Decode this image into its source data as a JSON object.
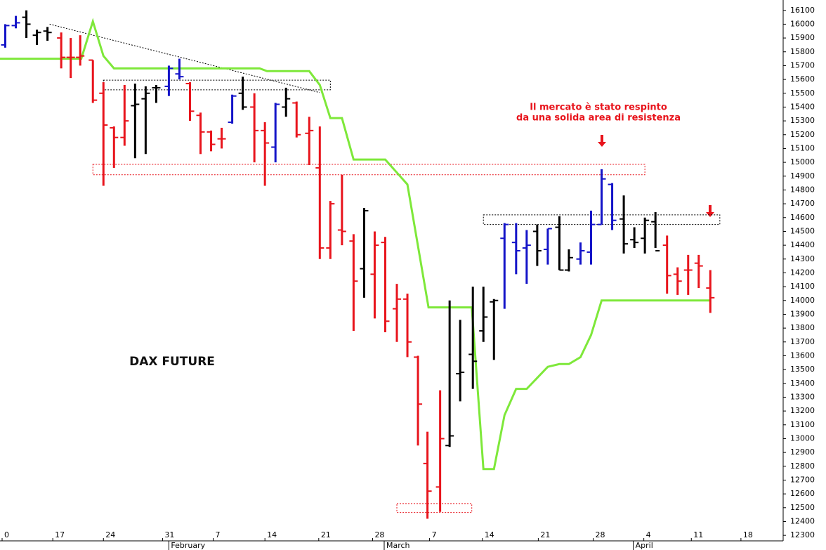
{
  "chart_data": {
    "type": "ohlc",
    "title": "DAX FUTURE",
    "annotations": [
      "Il mercato è stato respinto",
      "da una solida area di resistenza"
    ],
    "xlim": [
      -0.2,
      74.0
    ],
    "ylim": [
      12260,
      16175
    ],
    "xticks": [
      0,
      {
        "value": 4.8,
        "label": "17"
      },
      {
        "value": 9.6,
        "label": "24"
      },
      {
        "value": 15.2,
        "label": "31"
      },
      {
        "value": 20.0,
        "label": "7"
      },
      {
        "value": 24.9,
        "label": "14"
      },
      {
        "value": 30.0,
        "label": "21"
      },
      {
        "value": 35.1,
        "label": "28"
      },
      {
        "value": 40.5,
        "label": "7"
      },
      {
        "value": 45.5,
        "label": "14"
      },
      {
        "value": 50.8,
        "label": "21"
      },
      {
        "value": 56.0,
        "label": "28"
      },
      {
        "value": 60.8,
        "label": "4"
      },
      {
        "value": 65.3,
        "label": "11"
      },
      {
        "value": 70.0,
        "label": "18"
      }
    ],
    "month_labels": [
      {
        "value": 15.8,
        "label": "February"
      },
      {
        "value": 36.2,
        "label": "March"
      },
      {
        "value": 59.8,
        "label": "April"
      }
    ],
    "yticks": [
      12300,
      12400,
      12500,
      12600,
      12700,
      12800,
      12900,
      13000,
      13100,
      13200,
      13300,
      13400,
      13500,
      13600,
      13700,
      13800,
      13900,
      14000,
      14100,
      14200,
      14300,
      14400,
      14500,
      14600,
      14700,
      14800,
      14900,
      15000,
      15100,
      15200,
      15300,
      15400,
      15500,
      15600,
      15700,
      15800,
      15900,
      16000,
      16100
    ],
    "bars": {
      "x": [
        0.3,
        1.3,
        2.3,
        3.3,
        4.3,
        5.6,
        6.5,
        7.4,
        8.6,
        9.6,
        10.6,
        11.6,
        12.6,
        13.6,
        14.6,
        15.8,
        16.8,
        17.8,
        18.8,
        19.8,
        20.8,
        21.8,
        22.8,
        23.9,
        24.9,
        25.9,
        26.9,
        27.9,
        29.1,
        30.1,
        31.1,
        32.2,
        33.3,
        34.3,
        35.3,
        36.3,
        37.4,
        38.4,
        39.4,
        40.3,
        41.5,
        42.4,
        43.4,
        44.6,
        45.6,
        46.6,
        47.6,
        48.7,
        49.7,
        50.7,
        51.7,
        52.8,
        53.7,
        54.8,
        55.8,
        56.8,
        57.8,
        58.9,
        59.9,
        60.9,
        61.9,
        63.0,
        64.0,
        65.0,
        66.0,
        67.1
      ],
      "open": [
        15850,
        15990,
        16050,
        15920,
        15950,
        15900,
        15760,
        15760,
        15740,
        15500,
        15250,
        15180,
        15410,
        15460,
        15540,
        15550,
        15640,
        15570,
        15340,
        15220,
        15170,
        15290,
        15500,
        15400,
        15230,
        15110,
        15400,
        15430,
        15210,
        14960,
        14380,
        14510,
        14430,
        14230,
        14190,
        14420,
        13940,
        14010,
        13590,
        12820,
        12650,
        12950,
        13470,
        13610,
        13780,
        13990,
        14450,
        14420,
        14380,
        14500,
        14370,
        14530,
        14220,
        14300,
        14350,
        14550,
        14840,
        14590,
        14440,
        14450,
        14570,
        14400,
        14190,
        14220,
        14270,
        14090
      ],
      "high": [
        16000,
        16060,
        16100,
        15960,
        15980,
        15940,
        15900,
        15920,
        15740,
        15580,
        15260,
        15560,
        15570,
        15550,
        15560,
        15700,
        15750,
        15580,
        15360,
        15230,
        15250,
        15490,
        15620,
        15500,
        15290,
        15430,
        15540,
        15440,
        15330,
        15260,
        14720,
        14910,
        14480,
        14670,
        14500,
        14460,
        14120,
        14050,
        13600,
        13050,
        13350,
        14000,
        13860,
        14100,
        14100,
        14010,
        14560,
        14560,
        14510,
        14550,
        14520,
        14610,
        14370,
        14420,
        14650,
        14950,
        14850,
        14760,
        14530,
        14600,
        14640,
        14470,
        14240,
        14330,
        14330,
        14220
      ],
      "low": [
        15830,
        15970,
        15900,
        15850,
        15880,
        15680,
        15610,
        15700,
        15430,
        14830,
        14960,
        15120,
        15030,
        15060,
        15430,
        15480,
        15600,
        15300,
        15060,
        15080,
        15100,
        15280,
        15380,
        15000,
        14830,
        15000,
        15330,
        15180,
        14980,
        14300,
        14300,
        14400,
        13780,
        14020,
        13870,
        13770,
        13700,
        13590,
        12950,
        12420,
        12470,
        12940,
        13270,
        13360,
        13700,
        13570,
        13940,
        14190,
        14120,
        14250,
        14260,
        14220,
        14210,
        14260,
        14260,
        14550,
        14510,
        14340,
        14380,
        14340,
        14380,
        14050,
        14040,
        14040,
        14090,
        13910
      ],
      "close": [
        15990,
        16010,
        16000,
        15940,
        15940,
        15760,
        15760,
        15770,
        15450,
        15270,
        15180,
        15300,
        15420,
        15500,
        15540,
        15680,
        15620,
        15370,
        15220,
        15130,
        15170,
        15480,
        15400,
        15230,
        15140,
        15420,
        15460,
        15200,
        15230,
        14380,
        14700,
        14500,
        14140,
        14650,
        14400,
        13850,
        14010,
        13700,
        13250,
        12620,
        13000,
        13020,
        13480,
        13560,
        13880,
        14000,
        14550,
        14360,
        14400,
        14360,
        14520,
        14220,
        14310,
        14360,
        14550,
        14880,
        14580,
        14410,
        14420,
        14580,
        14360,
        14180,
        14140,
        14220,
        14250,
        14020
      ],
      "colors": [
        "#1414c8",
        "#1414c8",
        "#000000",
        "#000000",
        "#000000",
        "#e8141c",
        "#e8141c",
        "#e8141c",
        "#e8141c",
        "#e8141c",
        "#e8141c",
        "#e8141c",
        "#000000",
        "#000000",
        "#000000",
        "#1414c8",
        "#1414c8",
        "#e8141c",
        "#e8141c",
        "#e8141c",
        "#e8141c",
        "#1414c8",
        "#000000",
        "#e8141c",
        "#e8141c",
        "#1414c8",
        "#000000",
        "#e8141c",
        "#e8141c",
        "#e8141c",
        "#e8141c",
        "#e8141c",
        "#e8141c",
        "#000000",
        "#e8141c",
        "#e8141c",
        "#e8141c",
        "#e8141c",
        "#e8141c",
        "#e8141c",
        "#e8141c",
        "#000000",
        "#000000",
        "#000000",
        "#000000",
        "#000000",
        "#1414c8",
        "#1414c8",
        "#1414c8",
        "#000000",
        "#1414c8",
        "#000000",
        "#000000",
        "#1414c8",
        "#1414c8",
        "#1414c8",
        "#1414c8",
        "#000000",
        "#000000",
        "#000000",
        "#000000",
        "#e8141c",
        "#e8141c",
        "#e8141c",
        "#e8141c",
        "#e8141c"
      ]
    },
    "stop_line": {
      "color": "#7ee83a",
      "x": [
        -0.2,
        7.5,
        8.6,
        9.6,
        10.6,
        24.4,
        25.1,
        29.1,
        30.1,
        31.1,
        32.2,
        33.3,
        36.3,
        38.4,
        40.4,
        44.5,
        45.6,
        46.6,
        47.6,
        48.7,
        49.7,
        51.7,
        52.8,
        53.7,
        54.8,
        55.8,
        56.8,
        67.1
      ],
      "values": [
        15750,
        15750,
        16020,
        15770,
        15680,
        15680,
        15660,
        15660,
        15560,
        15320,
        15320,
        15020,
        15020,
        14840,
        13950,
        13950,
        12780,
        12780,
        13170,
        13360,
        13360,
        13520,
        13540,
        13540,
        13590,
        13750,
        14000,
        14000
      ]
    },
    "trendline": {
      "color": "#000000",
      "x": [
        4.5,
        30.1
      ],
      "values": [
        16000,
        15505
      ]
    },
    "zones": [
      {
        "x": [
          9.6,
          31.1
        ],
        "y": [
          15525,
          15595
        ],
        "color": "#000000"
      },
      {
        "x": [
          8.6,
          60.9
        ],
        "y": [
          14910,
          14985
        ],
        "color": "#e8141c"
      },
      {
        "x": [
          45.6,
          68.0
        ],
        "y": [
          14550,
          14620
        ],
        "color": "#000000"
      },
      {
        "x": [
          37.4,
          44.5
        ],
        "y": [
          12465,
          12530
        ],
        "color": "#e8141c"
      }
    ]
  }
}
